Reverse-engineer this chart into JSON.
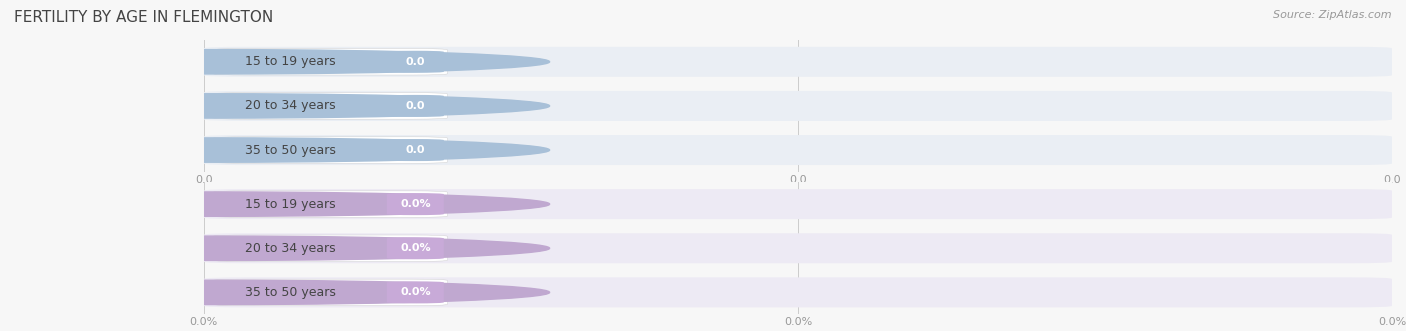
{
  "title": "FERTILITY BY AGE IN FLEMINGTON",
  "source_text": "Source: ZipAtlas.com",
  "top_section": {
    "categories": [
      "15 to 19 years",
      "20 to 34 years",
      "35 to 50 years"
    ],
    "values": [
      0.0,
      0.0,
      0.0
    ],
    "row_bg_color": "#eaeef4",
    "bar_white_color": "#ffffff",
    "circle_color": "#a8c0d8",
    "badge_color": "#a8c0d8",
    "label_color": "#444444",
    "value_text_color": "#ffffff",
    "fmt_pct": false,
    "x_tick_labels": [
      "0.0",
      "0.0",
      "0.0"
    ]
  },
  "bottom_section": {
    "categories": [
      "15 to 19 years",
      "20 to 34 years",
      "35 to 50 years"
    ],
    "values": [
      0.0,
      0.0,
      0.0
    ],
    "row_bg_color": "#edeaf4",
    "bar_white_color": "#ffffff",
    "circle_color": "#c0a8d0",
    "badge_color": "#c8aad8",
    "label_color": "#444444",
    "value_text_color": "#ffffff",
    "fmt_pct": true,
    "x_tick_labels": [
      "0.0%",
      "0.0%",
      "0.0%"
    ]
  },
  "fig_bg_color": "#f7f7f7",
  "title_color": "#444444",
  "title_fontsize": 11,
  "source_fontsize": 8,
  "label_fontsize": 9,
  "value_fontsize": 8,
  "tick_fontsize": 8,
  "tick_color": "#999999"
}
